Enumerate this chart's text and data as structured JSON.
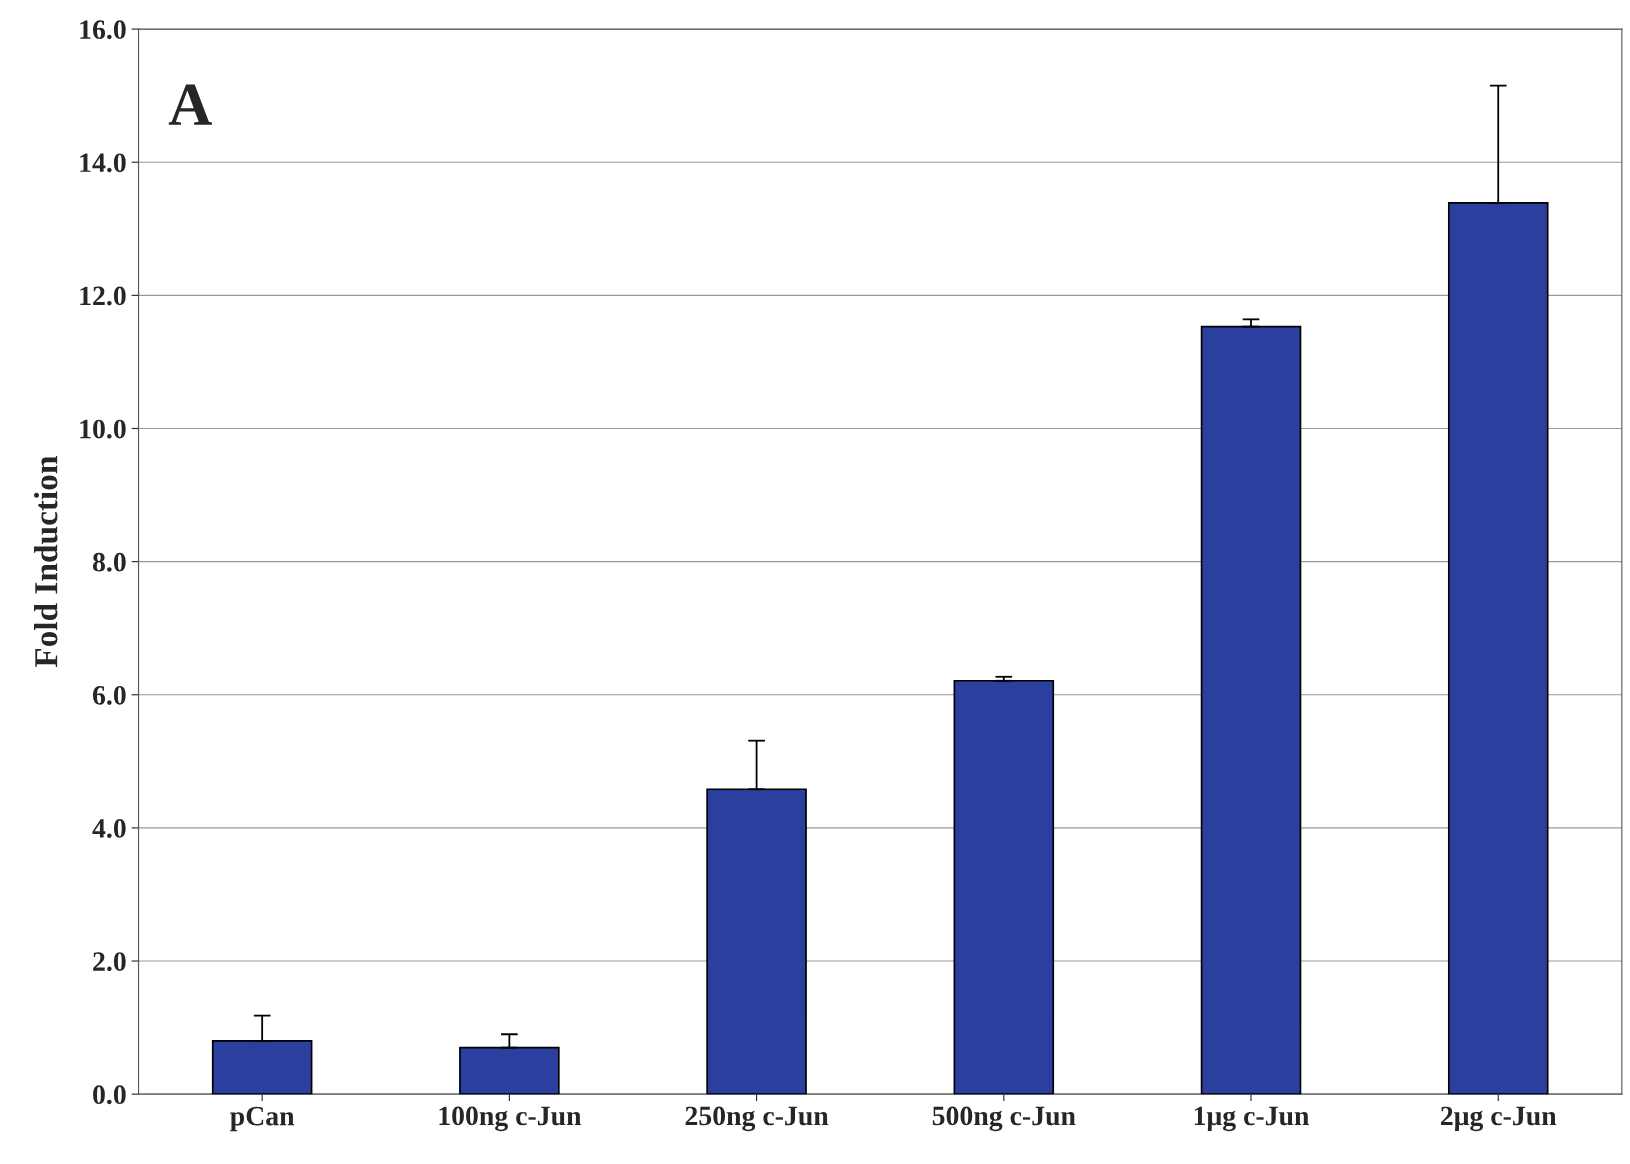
{
  "chart_data": {
    "type": "bar",
    "ylabel": "Fold Induction",
    "annotations": [
      "A"
    ],
    "categories": [
      "pCan",
      "100ng c-Jun",
      "250ng c-Jun",
      "500ng c-Jun",
      "1μg c-Jun",
      "2μg c-Jun"
    ],
    "values": [
      0.8,
      0.7,
      4.58,
      6.21,
      11.53,
      13.39
    ],
    "errors": [
      [
        0.8,
        1.18
      ],
      [
        0.7,
        0.9
      ],
      [
        4.58,
        5.31
      ],
      [
        6.21,
        6.27
      ],
      [
        11.53,
        11.64
      ],
      [
        13.39,
        15.15
      ]
    ],
    "color": "#2a3f9e",
    "ylim": [
      0,
      16
    ],
    "yticks": [
      {
        "value": 0,
        "label": "0.0"
      },
      {
        "value": 2,
        "label": "2.0"
      },
      {
        "value": 4,
        "label": "4.0"
      },
      {
        "value": 6,
        "label": "6.0"
      },
      {
        "value": 8,
        "label": "8.0"
      },
      {
        "value": 10,
        "label": "10.0"
      },
      {
        "value": 12,
        "label": "12.0"
      },
      {
        "value": 14,
        "label": "14.0"
      },
      {
        "value": 16,
        "label": "16.0"
      }
    ],
    "grid": "y"
  }
}
